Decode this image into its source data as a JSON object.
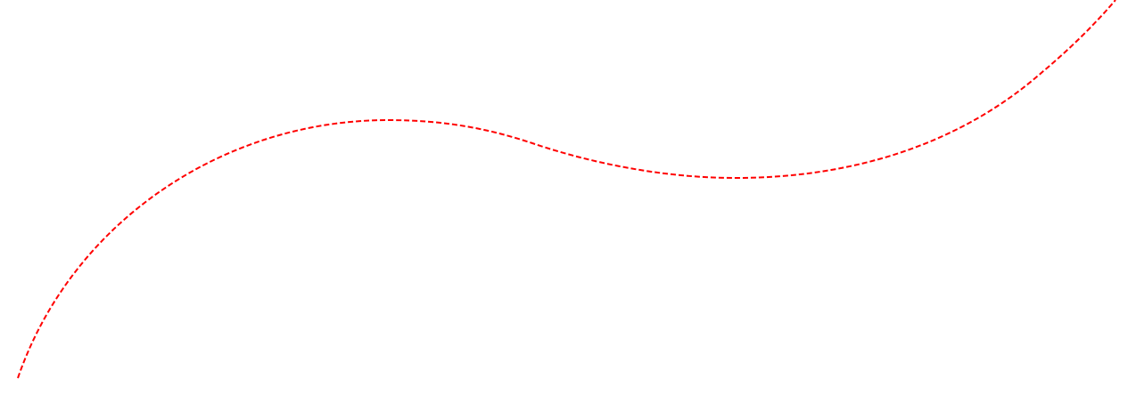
{
  "canvas": {
    "background": "#ffffff"
  },
  "curve": {
    "stroke_color": "#ff0000",
    "line_style": "dashed"
  }
}
